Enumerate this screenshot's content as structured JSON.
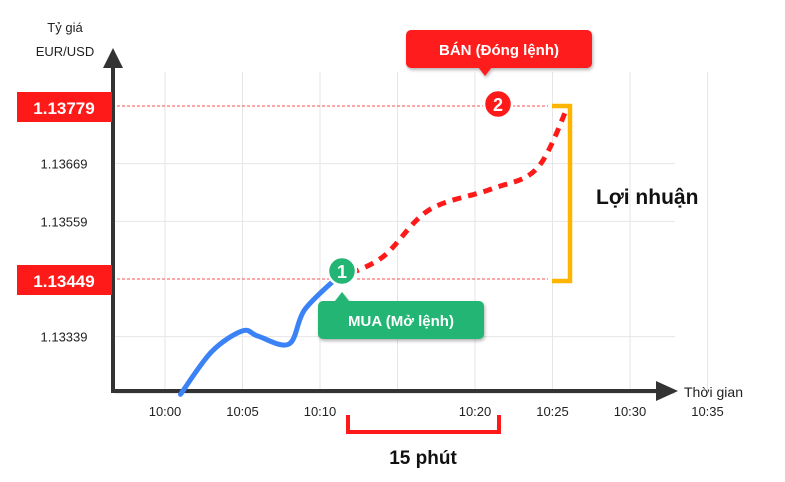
{
  "chart_data": {
    "type": "line",
    "title": "",
    "ylabel_lines": [
      "Tỷ giá",
      "EUR/USD"
    ],
    "xlabel": "Thời gian",
    "x_ticks": [
      "10:00",
      "10:05",
      "10:10",
      "10:20",
      "10:25",
      "10:30",
      "10:35"
    ],
    "y_ticks": [
      "1.13339",
      "1.13559",
      "1.13669"
    ],
    "y_highlight_ticks": [
      "1.13449",
      "1.13779"
    ],
    "grid": true,
    "series": [
      {
        "style": "solid",
        "color": "#3b82f6",
        "points": [
          {
            "x": "10:01",
            "y": 1.13229
          },
          {
            "x": "10:03",
            "y": 1.1331
          },
          {
            "x": "10:05",
            "y": 1.1335
          },
          {
            "x": "10:06",
            "y": 1.1334
          },
          {
            "x": "10:08",
            "y": 1.13325
          },
          {
            "x": "10:09",
            "y": 1.1339
          },
          {
            "x": "10:11",
            "y": 1.13449
          }
        ]
      },
      {
        "style": "dashed",
        "color": "#ff1a1a",
        "points": [
          {
            "x": "10:11",
            "y": 1.13449
          },
          {
            "x": "10:14",
            "y": 1.1349
          },
          {
            "x": "10:17",
            "y": 1.1358
          },
          {
            "x": "10:21",
            "y": 1.1362
          },
          {
            "x": "10:24",
            "y": 1.1366
          },
          {
            "x": "10:26",
            "y": 1.13779
          }
        ]
      }
    ],
    "annotations": {
      "buy": {
        "marker": "1",
        "label": "MUA (Mở lệnh)",
        "color": "#22b573"
      },
      "sell": {
        "marker": "2",
        "label": "BÁN (Đóng lệnh)",
        "color": "#ff1a1a"
      },
      "profit_label": "Lợi nhuận",
      "profit_color": "#ffb400",
      "duration_label": "15 phút",
      "duration_color": "#ff1a1a"
    }
  }
}
